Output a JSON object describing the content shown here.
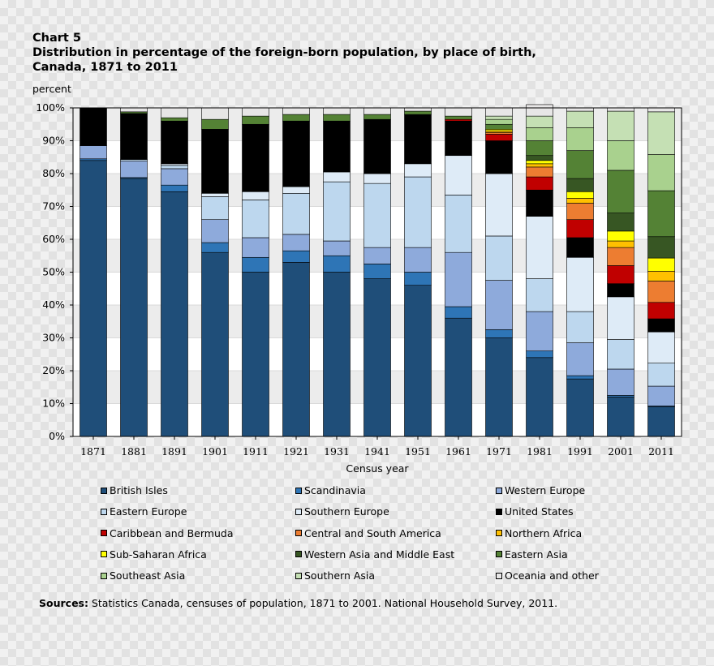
{
  "chart_data": {
    "type": "bar",
    "stacked": true,
    "chart_number": "Chart 5",
    "title": "Distribution in percentage of the foreign-born population, by place of birth, Canada, 1871 to 2011",
    "ylabel": "percent",
    "xlabel": "Census year",
    "ylim": [
      0,
      100
    ],
    "yticks": [
      "0%",
      "10%",
      "20%",
      "30%",
      "40%",
      "50%",
      "60%",
      "70%",
      "80%",
      "90%",
      "100%"
    ],
    "grid": true,
    "categories": [
      "1871",
      "1881",
      "1891",
      "1901",
      "1911",
      "1921",
      "1931",
      "1941",
      "1951",
      "1961",
      "1971",
      "1981",
      "1991",
      "2001",
      "2011"
    ],
    "series": [
      {
        "name": "British Isles",
        "color": "#1f4e79",
        "values": [
          84,
          78.5,
          74.5,
          56,
          50,
          53,
          50,
          48,
          46,
          36,
          30,
          24,
          17.5,
          12,
          9
        ]
      },
      {
        "name": "Scandinavia",
        "color": "#2e75b6",
        "values": [
          0.5,
          0.3,
          2,
          3,
          4.5,
          3.5,
          5,
          4.5,
          4,
          3.5,
          2.5,
          2,
          1,
          0.5,
          0.3
        ]
      },
      {
        "name": "Western Europe",
        "color": "#8eaadb",
        "values": [
          4,
          5,
          5,
          7,
          6,
          5,
          4.5,
          5,
          7.5,
          16.5,
          15,
          12,
          10,
          8,
          6
        ]
      },
      {
        "name": "Eastern Europe",
        "color": "#bdd7ee",
        "values": [
          0,
          0.5,
          1,
          7,
          11.5,
          12.5,
          18,
          19.5,
          21.5,
          17.5,
          13.5,
          10,
          9.5,
          9,
          7
        ]
      },
      {
        "name": "Southern Europe",
        "color": "#deebf7",
        "values": [
          0,
          0,
          0.5,
          1,
          2.5,
          2,
          3,
          3,
          4,
          12,
          19,
          19,
          16.5,
          13,
          9.5
        ]
      },
      {
        "name": "United States",
        "color": "#000000",
        "values": [
          11.5,
          14,
          13,
          19.5,
          20.5,
          20,
          15.5,
          16.5,
          15,
          10.5,
          10,
          8,
          6,
          4,
          4
        ]
      },
      {
        "name": "Caribbean and Bermuda",
        "color": "#c00000",
        "values": [
          0,
          0,
          0,
          0,
          0,
          0,
          0,
          0,
          0,
          0.5,
          2,
          4,
          5.5,
          5.5,
          5
        ]
      },
      {
        "name": "Central and South America",
        "color": "#ed7d31",
        "values": [
          0,
          0,
          0,
          0,
          0,
          0,
          0,
          0,
          0,
          0,
          0.5,
          3,
          5,
          5.5,
          6.5
        ]
      },
      {
        "name": "Northern Africa",
        "color": "#ffc000",
        "values": [
          0,
          0,
          0,
          0,
          0,
          0,
          0,
          0,
          0,
          0,
          0.5,
          1,
          1.5,
          2,
          3
        ]
      },
      {
        "name": "Sub-Saharan Africa",
        "color": "#ffff00",
        "values": [
          0,
          0,
          0,
          0,
          0,
          0,
          0,
          0,
          0,
          0,
          0.5,
          1,
          2,
          3,
          4
        ]
      },
      {
        "name": "Western Asia and Middle East",
        "color": "#375623",
        "values": [
          0,
          0,
          0,
          0,
          0,
          0,
          0,
          0,
          0,
          0,
          0,
          1.5,
          4,
          5.5,
          6.5
        ]
      },
      {
        "name": "Eastern Asia",
        "color": "#548235",
        "values": [
          0,
          0.5,
          1,
          3,
          2.5,
          2,
          2,
          1.5,
          1,
          1,
          1.5,
          4.5,
          8.5,
          13,
          14
        ]
      },
      {
        "name": "Southeast Asia",
        "color": "#a9d18e",
        "values": [
          0,
          0,
          0,
          0,
          0,
          0,
          0,
          0,
          0,
          0,
          1.5,
          4,
          7,
          9,
          11
        ]
      },
      {
        "name": "Southern Asia",
        "color": "#c5e0b4",
        "values": [
          0,
          0,
          0,
          0,
          0,
          0,
          0,
          0,
          0,
          0,
          1,
          3.5,
          5,
          9,
          13
        ]
      },
      {
        "name": "Oceania and other",
        "color": "#e7e6e6",
        "values": [
          0,
          1.2,
          3,
          3.5,
          2.5,
          2,
          2,
          2,
          1,
          2.5,
          2.5,
          3.5,
          1,
          1,
          1.2
        ]
      }
    ],
    "legend_position": "bottom"
  },
  "sources": {
    "label": "Sources:",
    "text": " Statistics Canada, censuses of population, 1871 to 2001. National Household Survey, 2011."
  }
}
